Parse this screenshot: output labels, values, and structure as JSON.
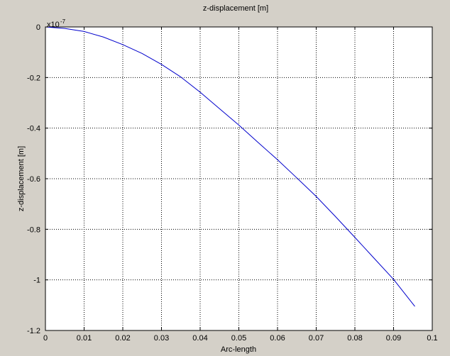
{
  "chart_data": {
    "type": "line",
    "title": "z-displacement [m]",
    "xlabel": "Arc-length",
    "ylabel": "z-displacement [m]",
    "y_exponent_base": "x10",
    "y_exponent_power": "-7",
    "xlim": [
      0,
      0.1
    ],
    "ylim": [
      -1.2,
      0
    ],
    "xticks": [
      0,
      0.01,
      0.02,
      0.03,
      0.04,
      0.05,
      0.06,
      0.07,
      0.08,
      0.09,
      0.1
    ],
    "xtick_labels": [
      "0",
      "0.01",
      "0.02",
      "0.03",
      "0.04",
      "0.05",
      "0.06",
      "0.07",
      "0.08",
      "0.09",
      "0.1"
    ],
    "yticks": [
      0,
      -0.2,
      -0.4,
      -0.6,
      -0.8,
      -1,
      -1.2
    ],
    "ytick_labels": [
      "0",
      "-0.2",
      "-0.4",
      "-0.6",
      "-0.8",
      "-1",
      "-1.2"
    ],
    "grid": true,
    "series": [
      {
        "color": "#0000cc",
        "x": [
          0,
          0.005,
          0.01,
          0.015,
          0.02,
          0.025,
          0.03,
          0.035,
          0.04,
          0.045,
          0.05,
          0.055,
          0.06,
          0.065,
          0.07,
          0.075,
          0.08,
          0.085,
          0.09,
          0.0955
        ],
        "y": [
          0,
          -0.006,
          -0.018,
          -0.04,
          -0.07,
          -0.105,
          -0.148,
          -0.198,
          -0.258,
          -0.323,
          -0.388,
          -0.457,
          -0.525,
          -0.597,
          -0.67,
          -0.75,
          -0.832,
          -0.915,
          -0.998,
          -1.105
        ]
      }
    ]
  },
  "colors": {
    "background": "#d4d0c8",
    "plot_area": "#ffffff",
    "grid": "#000000",
    "line": "#0000cc"
  }
}
